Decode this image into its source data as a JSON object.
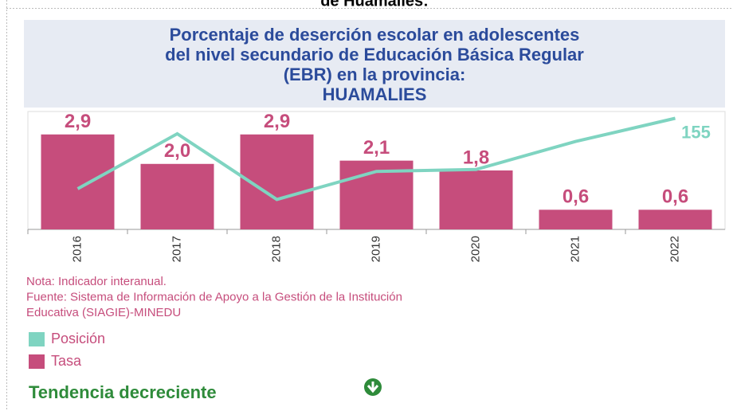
{
  "page_title": "de Huamalies:",
  "chart_data": {
    "type": "bar",
    "title_lines": [
      "Porcentaje de deserción escolar en adolescentes",
      "del nivel secundario de Educación Básica Regular",
      "(EBR) en la provincia:",
      "HUAMALIES"
    ],
    "categories": [
      "2016",
      "2017",
      "2018",
      "2019",
      "2020",
      "2021",
      "2022"
    ],
    "series": [
      {
        "name": "Posición",
        "type": "line",
        "axis": "y2",
        "color": "#7fd4c1",
        "values": [
          82,
          139,
          71,
          100,
          102,
          131,
          155
        ],
        "value_labels": [
          null,
          null,
          null,
          null,
          null,
          null,
          "155"
        ]
      },
      {
        "name": "Tasa",
        "type": "bar",
        "color": "#c64d7c",
        "values": [
          2.9,
          2.0,
          2.9,
          2.1,
          1.8,
          0.6,
          0.6
        ],
        "value_labels": [
          "2,9",
          "2,0",
          "2,9",
          "2,1",
          "1,8",
          "0,6",
          "0,6"
        ]
      }
    ],
    "ylim": [
      0,
      3.6
    ],
    "y2lim": [
      40,
      162
    ],
    "notes": [
      "Nota: Indicador interanual.",
      "Fuente: Sistema de Información de Apoyo a la Gestión de la Institución",
      "Educativa (SIAGIE)-MINEDU"
    ]
  },
  "trend": "Tendencia decreciente"
}
